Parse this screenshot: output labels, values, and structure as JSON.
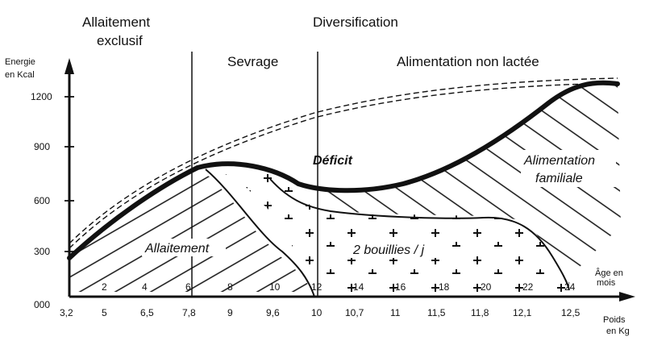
{
  "chart_data": {
    "type": "line",
    "phases": [
      {
        "label_line1": "Allaitement",
        "label_line2": "exclusif"
      },
      {
        "label_line1": "Diversification"
      },
      {
        "label_line1": "Sevrage"
      },
      {
        "label_line1": "Alimentation non lactée"
      }
    ],
    "ylabel_line1": "Energie",
    "ylabel_line2": "en Kcal",
    "y_ticks": [
      "000",
      "300",
      "600",
      "900",
      "1200"
    ],
    "ylim": [
      0,
      1320
    ],
    "x_age_label_line1": "Âge en",
    "x_age_label_line2": "mois",
    "x_weight_label_line1": "Poids",
    "x_weight_label_line2": "en Kg",
    "x_age_ticks": [
      "2",
      "4",
      "6",
      "8",
      "10",
      "12",
      "14",
      "16",
      "18",
      "20",
      "22",
      "24"
    ],
    "x_weight_ticks": [
      "3,2",
      "5",
      "6,5",
      "7,8",
      "9",
      "9,6",
      "10",
      "10,7",
      "11",
      "11,5",
      "11,8",
      "12,1",
      "12,5"
    ],
    "zone_labels": {
      "allaitement": "Allaitement",
      "bouillies": "2 bouillies / j",
      "deficit": "Déficit",
      "familiale_line1": "Alimentation",
      "familiale_line2": "familiale"
    },
    "series": [
      {
        "x": [
          0,
          1,
          2,
          3,
          4,
          5,
          6,
          7,
          8,
          9,
          10,
          11,
          12,
          13,
          14,
          15,
          16,
          17,
          18,
          19,
          20,
          21,
          22,
          23,
          24,
          25
        ],
        "y": [
          280,
          390,
          470,
          560,
          640,
          710,
          770,
          845,
          910,
          975,
          1040,
          1090,
          1130,
          1165,
          1195,
          1220,
          1240,
          1255,
          1265,
          1272,
          1277,
          1280,
          1281,
          1282,
          1282,
          1282
        ]
      },
      {
        "x": [
          0,
          2,
          4,
          6,
          7,
          8,
          9,
          10,
          11,
          12,
          14,
          16,
          18,
          20,
          22,
          23,
          24
        ],
        "y": [
          280,
          470,
          640,
          790,
          810,
          800,
          760,
          700,
          680,
          670,
          680,
          730,
          830,
          1000,
          1150,
          1240,
          1260
        ]
      },
      {
        "x": [
          6,
          7,
          8,
          9,
          10,
          11
        ],
        "y": [
          790,
          720,
          580,
          380,
          150,
          10
        ]
      },
      {
        "x": [
          9,
          10,
          12,
          14,
          16,
          18,
          20,
          21,
          22,
          23,
          23.6
        ],
        "y": [
          640,
          540,
          500,
          495,
          495,
          495,
          480,
          420,
          260,
          100,
          40
        ]
      }
    ]
  }
}
